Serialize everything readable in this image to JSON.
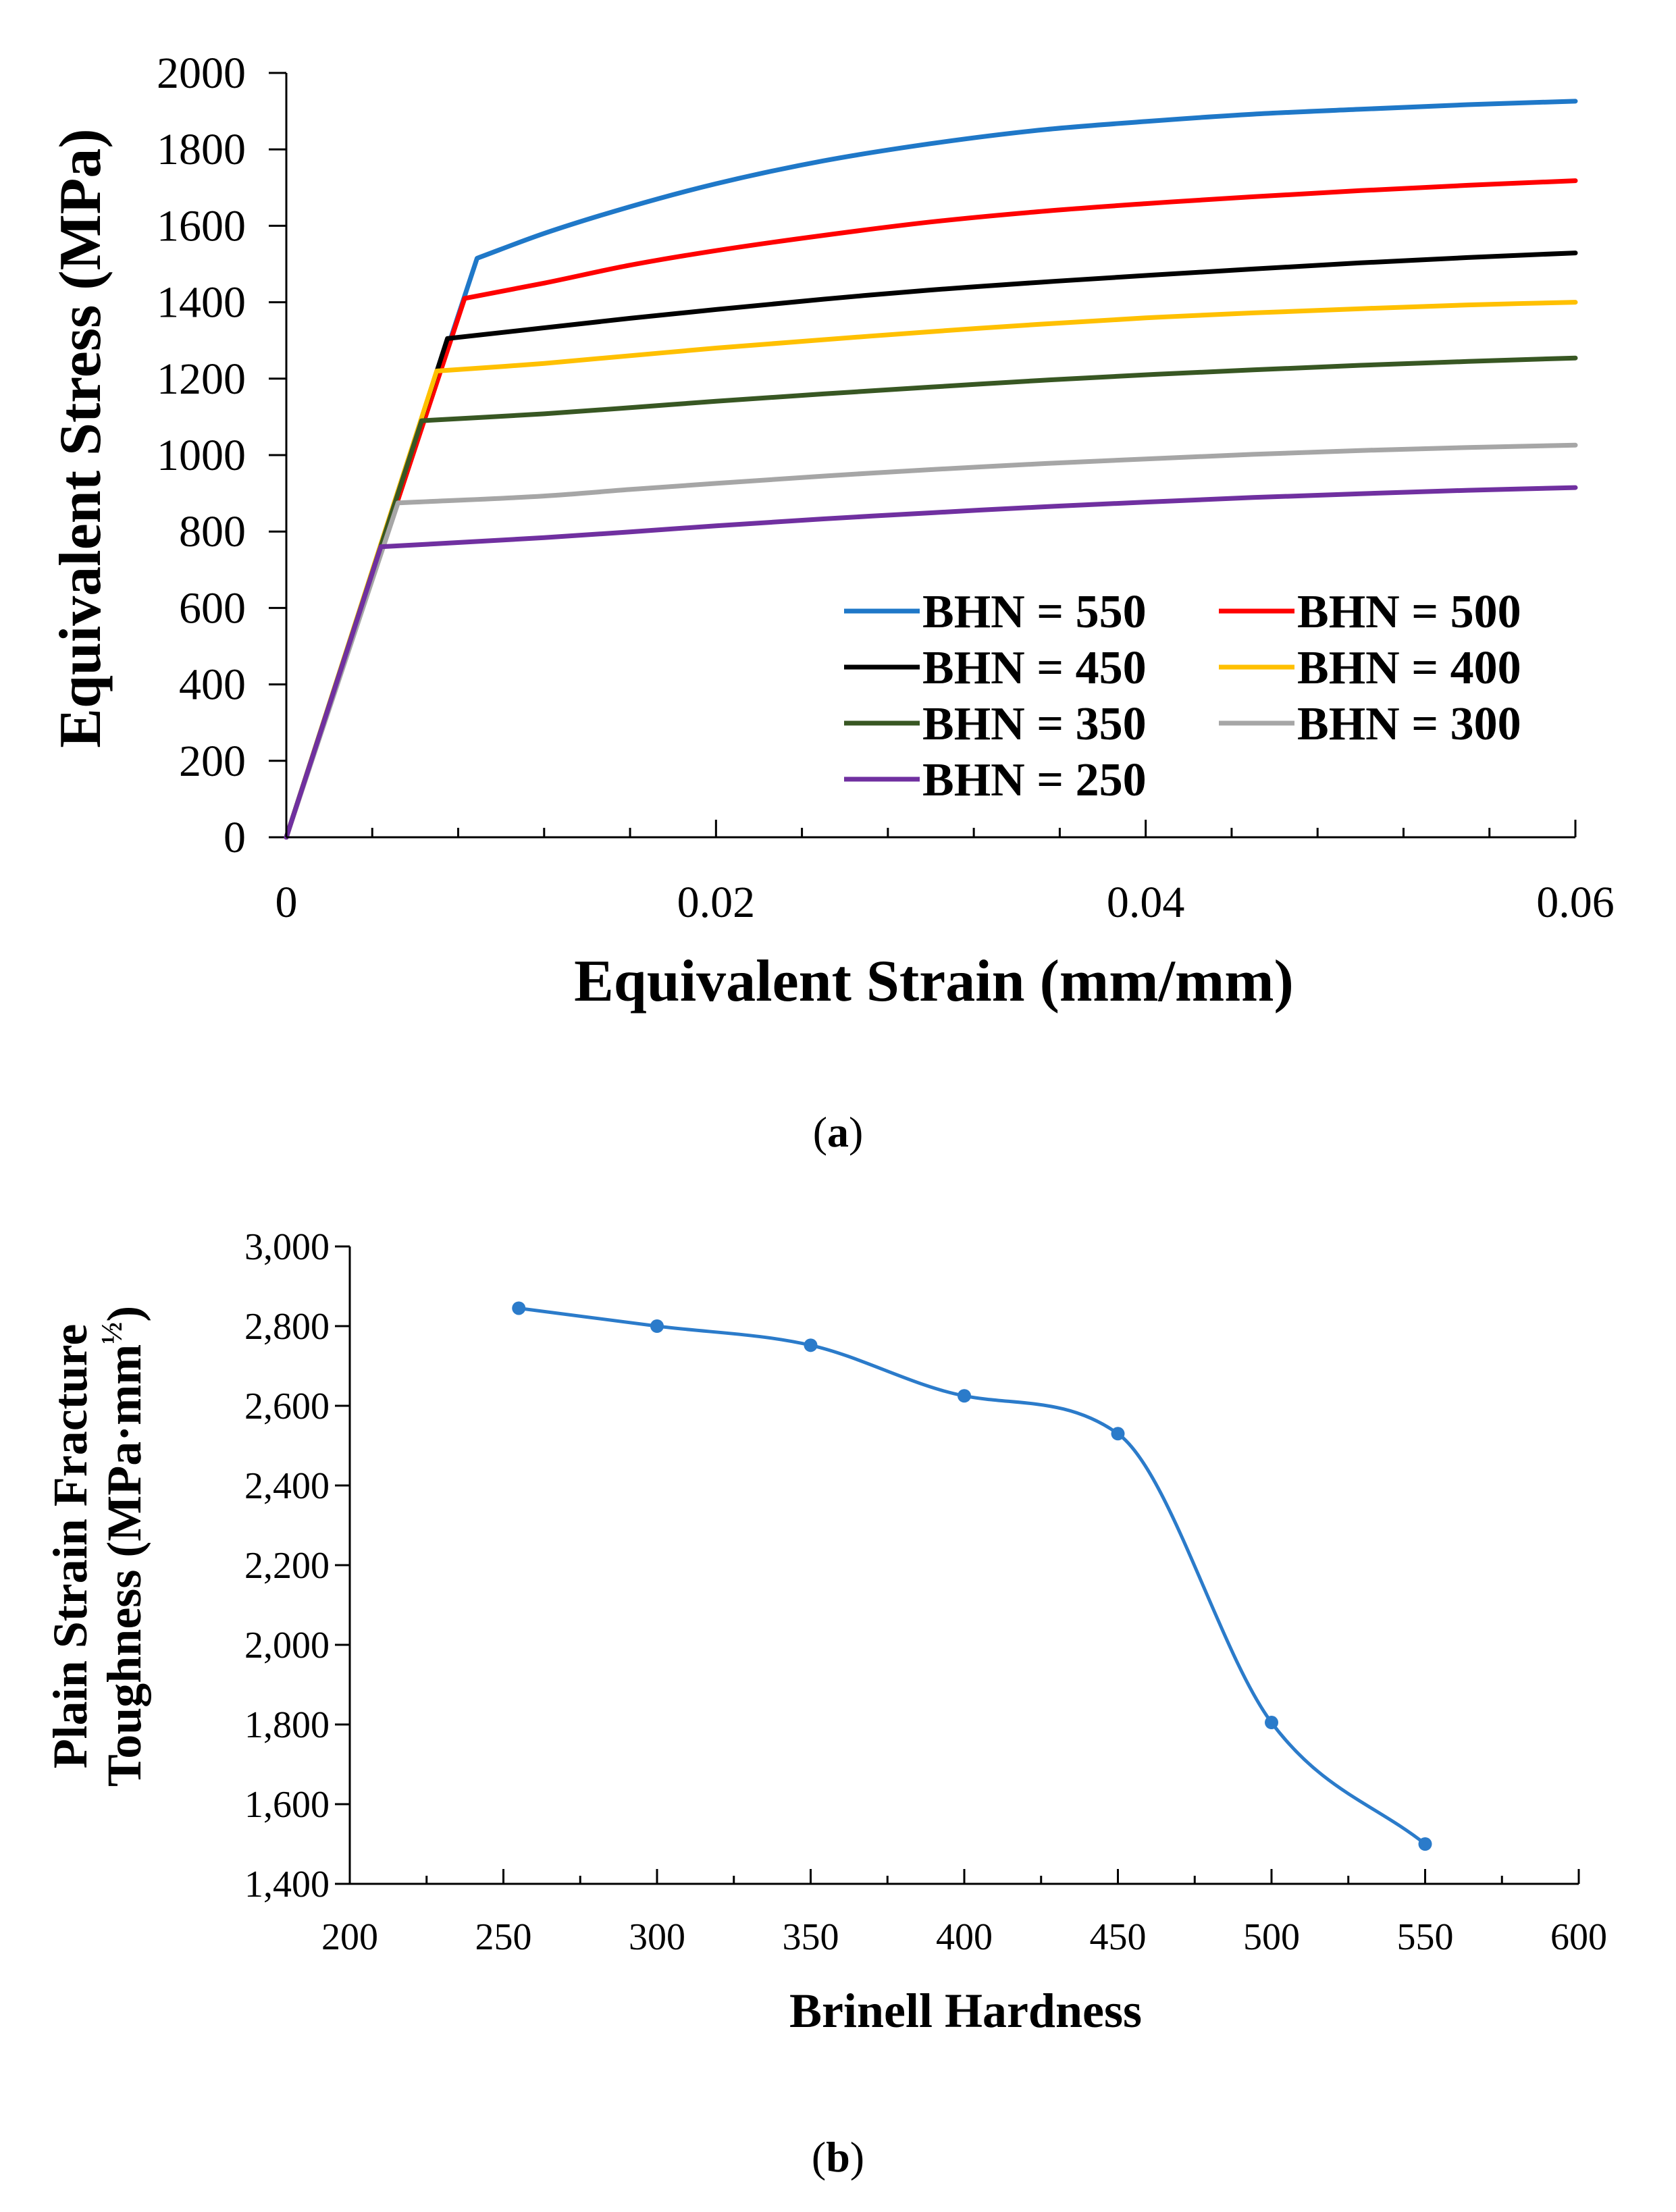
{
  "chart_data": [
    {
      "type": "line",
      "panel_label": "a",
      "title": "",
      "xlabel": "Equivalent Strain (mm/mm)",
      "ylabel": "Equivalent Stress (MPa)",
      "xlim": [
        0,
        0.06
      ],
      "ylim": [
        0,
        2000
      ],
      "x_ticks": [
        "0",
        "0.02",
        "0.04",
        "0.06"
      ],
      "y_ticks": [
        "0",
        "200",
        "400",
        "600",
        "800",
        "1000",
        "1200",
        "1400",
        "1600",
        "1800",
        "2000"
      ],
      "legend_position": "bottom-right",
      "grid": false,
      "series": [
        {
          "name": "BHN = 550",
          "color": "#1f78c8",
          "x": [
            0,
            0.00888,
            0.012,
            0.016,
            0.02,
            0.025,
            0.03,
            0.035,
            0.04,
            0.045,
            0.05,
            0.055,
            0.06
          ],
          "y": [
            0,
            1515,
            1580,
            1650,
            1710,
            1770,
            1815,
            1850,
            1873,
            1892,
            1905,
            1917,
            1926
          ]
        },
        {
          "name": "BHN = 500",
          "color": "#ff0000",
          "x": [
            0,
            0.0083,
            0.012,
            0.016,
            0.02,
            0.025,
            0.03,
            0.035,
            0.04,
            0.045,
            0.05,
            0.055,
            0.06
          ],
          "y": [
            0,
            1410,
            1450,
            1497,
            1535,
            1575,
            1610,
            1637,
            1658,
            1676,
            1692,
            1706,
            1718
          ]
        },
        {
          "name": "BHN = 450",
          "color": "#000000",
          "x": [
            0,
            0.0075,
            0.012,
            0.016,
            0.02,
            0.025,
            0.03,
            0.035,
            0.04,
            0.045,
            0.05,
            0.055,
            0.06
          ],
          "y": [
            0,
            1305,
            1333,
            1358,
            1381,
            1408,
            1432,
            1452,
            1470,
            1487,
            1503,
            1517,
            1529
          ]
        },
        {
          "name": "BHN = 400",
          "color": "#ffc000",
          "x": [
            0,
            0.007,
            0.012,
            0.016,
            0.02,
            0.025,
            0.03,
            0.035,
            0.04,
            0.045,
            0.05,
            0.055,
            0.06
          ],
          "y": [
            0,
            1220,
            1240,
            1260,
            1280,
            1302,
            1323,
            1342,
            1359,
            1372,
            1383,
            1393,
            1400
          ]
        },
        {
          "name": "BHN = 350",
          "color": "#385723",
          "x": [
            0,
            0.0063,
            0.012,
            0.016,
            0.02,
            0.025,
            0.03,
            0.035,
            0.04,
            0.045,
            0.05,
            0.055,
            0.06
          ],
          "y": [
            0,
            1090,
            1108,
            1124,
            1141,
            1160,
            1178,
            1195,
            1210,
            1223,
            1235,
            1245,
            1254
          ]
        },
        {
          "name": "BHN = 300",
          "color": "#a6a6a6",
          "x": [
            0,
            0.0052,
            0.012,
            0.016,
            0.02,
            0.025,
            0.03,
            0.035,
            0.04,
            0.045,
            0.05,
            0.055,
            0.06
          ],
          "y": [
            0,
            875,
            893,
            910,
            926,
            945,
            962,
            977,
            990,
            1002,
            1012,
            1020,
            1026
          ]
        },
        {
          "name": "BHN = 250",
          "color": "#7030a0",
          "x": [
            0,
            0.0044,
            0.012,
            0.016,
            0.02,
            0.025,
            0.03,
            0.035,
            0.04,
            0.045,
            0.05,
            0.055,
            0.06
          ],
          "y": [
            0,
            760,
            784,
            799,
            815,
            833,
            849,
            864,
            877,
            889,
            899,
            908,
            915
          ]
        }
      ]
    },
    {
      "type": "line",
      "panel_label": "b",
      "title": "",
      "xlabel": "Brinell Hardness",
      "ylabel_line1": "Plain Strain Fracture",
      "ylabel_line2_prefix": "Toughness (MPa·mm",
      "ylabel_line2_exp": "½",
      "ylabel_line2_suffix": ")",
      "xlim": [
        200,
        600
      ],
      "ylim": [
        1400,
        3000
      ],
      "x_ticks": [
        "200",
        "250",
        "300",
        "350",
        "400",
        "450",
        "500",
        "550",
        "600"
      ],
      "y_ticks": [
        "1,400",
        "1,600",
        "1,800",
        "2,000",
        "2,200",
        "2,400",
        "2,600",
        "2,800",
        "3,000"
      ],
      "grid": false,
      "series": [
        {
          "name": "Fracture Toughness",
          "color": "#2b7bca",
          "x": [
            255,
            300,
            350,
            400,
            450,
            500,
            550
          ],
          "y": [
            2845,
            2800,
            2752,
            2625,
            2530,
            1805,
            1500
          ]
        }
      ]
    }
  ],
  "captions": {
    "a": {
      "open": "(",
      "label": "a",
      "close": ")"
    },
    "b": {
      "open": "(",
      "label": "b",
      "close": ")"
    }
  }
}
